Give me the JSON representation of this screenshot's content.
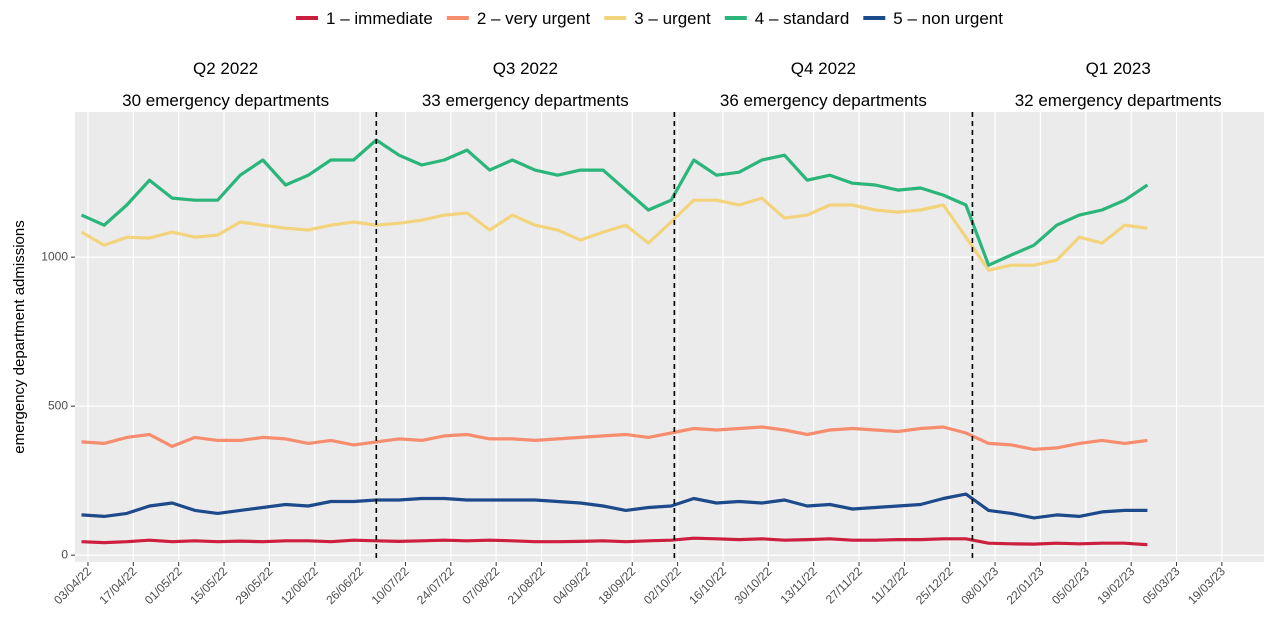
{
  "chart_data": {
    "type": "line",
    "y_label": "emergency department admissions",
    "x": [
      "01/04/22",
      "08/04/22",
      "15/04/22",
      "22/04/22",
      "29/04/22",
      "06/05/22",
      "13/05/22",
      "20/05/22",
      "27/05/22",
      "03/06/22",
      "10/06/22",
      "17/06/22",
      "24/06/22",
      "01/07/22",
      "08/07/22",
      "15/07/22",
      "22/07/22",
      "29/07/22",
      "05/08/22",
      "12/08/22",
      "19/08/22",
      "26/08/22",
      "02/09/22",
      "09/09/22",
      "16/09/22",
      "23/09/22",
      "30/09/22",
      "07/10/22",
      "14/10/22",
      "21/10/22",
      "28/10/22",
      "04/11/22",
      "11/11/22",
      "18/11/22",
      "25/11/22",
      "02/12/22",
      "09/12/22",
      "16/12/22",
      "23/12/22",
      "30/12/22",
      "06/01/23",
      "13/01/23",
      "20/01/23",
      "27/01/23",
      "03/02/23",
      "10/02/23",
      "17/02/23",
      "24/02/23"
    ],
    "series": [
      {
        "name": "1 – immediate",
        "color": "#cc1f3f",
        "values": [
          45,
          42,
          45,
          50,
          45,
          48,
          45,
          47,
          45,
          48,
          48,
          45,
          50,
          48,
          46,
          48,
          50,
          48,
          50,
          48,
          45,
          45,
          46,
          48,
          45,
          48,
          50,
          57,
          55,
          52,
          55,
          50,
          52,
          55,
          50,
          50,
          52,
          52,
          55,
          55,
          40,
          38,
          37,
          40,
          38,
          40,
          40,
          35
        ]
      },
      {
        "name": "2 – very urgent",
        "color": "#f68d6e",
        "values": [
          380,
          375,
          395,
          405,
          365,
          395,
          385,
          385,
          395,
          390,
          375,
          385,
          370,
          380,
          390,
          385,
          400,
          405,
          390,
          390,
          385,
          390,
          395,
          400,
          405,
          395,
          410,
          425,
          420,
          425,
          430,
          420,
          405,
          420,
          425,
          420,
          415,
          425,
          430,
          410,
          375,
          370,
          355,
          360,
          375,
          385,
          375,
          385
        ]
      },
      {
        "name": "3 – urgent",
        "color": "#f3d47c",
        "values": [
          1084,
          1040,
          1067,
          1064,
          1084,
          1067,
          1074,
          1118,
          1107,
          1097,
          1091,
          1107,
          1118,
          1107,
          1114,
          1124,
          1141,
          1148,
          1091,
          1141,
          1107,
          1091,
          1057,
          1084,
          1107,
          1047,
          1118,
          1191,
          1191,
          1175,
          1198,
          1131,
          1141,
          1175,
          1175,
          1158,
          1151,
          1158,
          1175,
          1067,
          956,
          973,
          973,
          990,
          1067,
          1047,
          1107,
          1097
        ]
      },
      {
        "name": "4 – standard",
        "color": "#2ab57a",
        "values": [
          1141,
          1107,
          1175,
          1258,
          1198,
          1191,
          1191,
          1275,
          1326,
          1242,
          1275,
          1326,
          1326,
          1393,
          1342,
          1309,
          1326,
          1359,
          1292,
          1326,
          1292,
          1275,
          1292,
          1292,
          1225,
          1158,
          1191,
          1326,
          1275,
          1285,
          1326,
          1342,
          1258,
          1275,
          1248,
          1242,
          1225,
          1232,
          1208,
          1175,
          973,
          1007,
          1040,
          1107,
          1141,
          1158,
          1191,
          1242
        ]
      },
      {
        "name": "5 – non urgent",
        "color": "#1d4a8a",
        "values": [
          135,
          130,
          140,
          165,
          175,
          150,
          140,
          150,
          160,
          170,
          165,
          180,
          180,
          185,
          185,
          190,
          190,
          185,
          185,
          185,
          185,
          180,
          175,
          165,
          150,
          160,
          165,
          190,
          175,
          180,
          175,
          185,
          165,
          170,
          155,
          160,
          165,
          170,
          190,
          205,
          150,
          140,
          125,
          135,
          130,
          145,
          150,
          150
        ]
      }
    ],
    "xlim": [
      "30/03/22",
      "01/04/23"
    ],
    "xticks": [
      "03/04/22",
      "17/04/22",
      "01/05/22",
      "15/05/22",
      "29/05/22",
      "12/06/22",
      "26/06/22",
      "10/07/22",
      "24/07/22",
      "07/08/22",
      "21/08/22",
      "04/09/22",
      "18/09/22",
      "02/10/22",
      "16/10/22",
      "30/10/22",
      "13/11/22",
      "27/11/22",
      "11/12/22",
      "25/12/22",
      "08/01/23",
      "22/01/23",
      "05/02/23",
      "19/02/23",
      "05/03/23",
      "19/03/23"
    ],
    "ylim": [
      -23,
      1487
    ],
    "yticks": [
      0,
      500,
      1000
    ],
    "grid": true,
    "legend": "top",
    "boundaries": [
      "01/07/22",
      "01/10/22",
      "01/01/23"
    ],
    "panels": [
      {
        "title": "Q2 2022",
        "subtitle": "30 emergency departments"
      },
      {
        "title": "Q3 2022",
        "subtitle": "33 emergency departments"
      },
      {
        "title": "Q4 2022",
        "subtitle": "36 emergency departments"
      },
      {
        "title": "Q1 2023",
        "subtitle": "32 emergency departments"
      }
    ]
  }
}
